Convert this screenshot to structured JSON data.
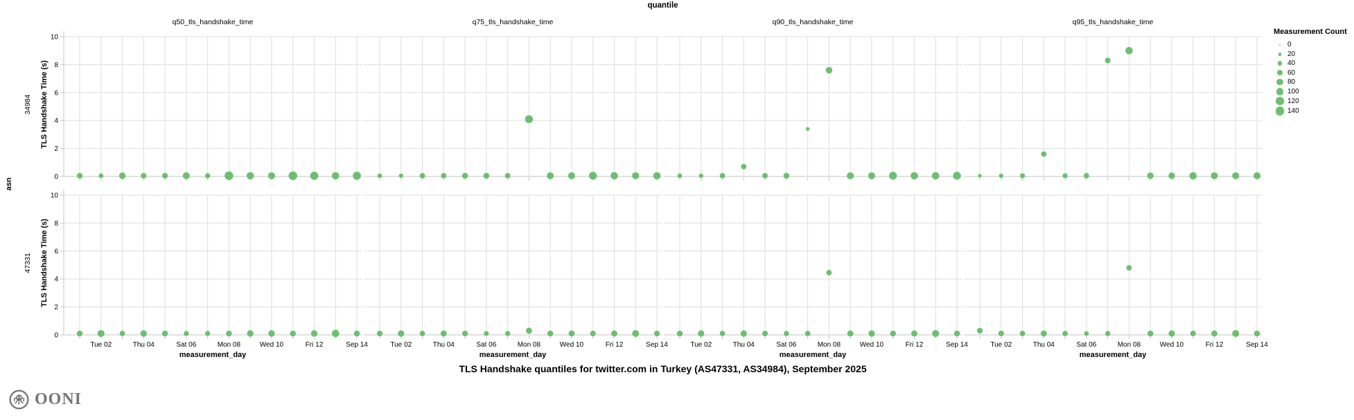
{
  "title": "TLS Handshake quantiles for twitter.com in Turkey (AS47331, AS34984), September 2025",
  "logo": {
    "text": "OONI"
  },
  "chart_data": {
    "type": "scatter",
    "facet": {
      "column_field": "quantile",
      "row_field": "asn"
    },
    "columns": [
      "q50_tls_handshake_time",
      "q75_tls_handshake_time",
      "q90_tls_handshake_time",
      "q95_tls_handshake_time"
    ],
    "rows": [
      "34984",
      "47331"
    ],
    "x": {
      "label": "measurement_day",
      "days": 14,
      "tick_labels": [
        {
          "day": 2,
          "label": "Tue 02"
        },
        {
          "day": 4,
          "label": "Thu 04"
        },
        {
          "day": 6,
          "label": "Sat 06"
        },
        {
          "day": 8,
          "label": "Mon 08"
        },
        {
          "day": 10,
          "label": "Wed 10"
        },
        {
          "day": 12,
          "label": "Fri 12"
        },
        {
          "day": 14,
          "label": "Sep 14"
        }
      ]
    },
    "y": {
      "label": "TLS Handshake Time (s)",
      "lim": [
        0,
        10
      ],
      "ticks": [
        0,
        2,
        4,
        6,
        8,
        10
      ]
    },
    "size_legend": {
      "title": "Measurement Count",
      "values": [
        0,
        20,
        40,
        60,
        80,
        100,
        120,
        140
      ]
    },
    "point_color": "#6CBF70",
    "grid_color": "#dddddd",
    "axis_color": "#c4c4c4",
    "series": [
      {
        "row": "34984",
        "column": "q50_tls_handshake_time",
        "points": [
          [
            1,
            0.05,
            60
          ],
          [
            2,
            0.05,
            40
          ],
          [
            3,
            0.05,
            80
          ],
          [
            4,
            0.05,
            60
          ],
          [
            5,
            0.05,
            60
          ],
          [
            6,
            0.05,
            90
          ],
          [
            7,
            0.05,
            50
          ],
          [
            8,
            0.05,
            140
          ],
          [
            9,
            0.05,
            100
          ],
          [
            10,
            0.05,
            90
          ],
          [
            11,
            0.05,
            140
          ],
          [
            12,
            0.05,
            120
          ],
          [
            13,
            0.05,
            100
          ],
          [
            14,
            0.05,
            120
          ]
        ]
      },
      {
        "row": "34984",
        "column": "q75_tls_handshake_time",
        "points": [
          [
            1,
            0.05,
            40
          ],
          [
            2,
            0.05,
            35
          ],
          [
            3,
            0.05,
            55
          ],
          [
            4,
            0.05,
            55
          ],
          [
            5,
            0.05,
            65
          ],
          [
            6,
            0.05,
            65
          ],
          [
            7,
            0.05,
            55
          ],
          [
            8,
            4.1,
            115
          ],
          [
            9,
            0.05,
            90
          ],
          [
            10,
            0.05,
            90
          ],
          [
            11,
            0.05,
            115
          ],
          [
            12,
            0.05,
            100
          ],
          [
            13,
            0.05,
            90
          ],
          [
            14,
            0.05,
            100
          ]
        ]
      },
      {
        "row": "34984",
        "column": "q90_tls_handshake_time",
        "points": [
          [
            1,
            0.05,
            40
          ],
          [
            2,
            0.05,
            35
          ],
          [
            3,
            0.05,
            55
          ],
          [
            4,
            0.7,
            55
          ],
          [
            5,
            0.05,
            55
          ],
          [
            6,
            0.05,
            65
          ],
          [
            7,
            3.4,
            25
          ],
          [
            8,
            7.6,
            80
          ],
          [
            9,
            0.05,
            90
          ],
          [
            10,
            0.05,
            90
          ],
          [
            11,
            0.05,
            115
          ],
          [
            12,
            0.05,
            100
          ],
          [
            13,
            0.05,
            100
          ],
          [
            14,
            0.05,
            115
          ]
        ]
      },
      {
        "row": "34984",
        "column": "q95_tls_handshake_time",
        "points": [
          [
            1,
            0.05,
            25
          ],
          [
            2,
            0.05,
            35
          ],
          [
            3,
            0.05,
            48
          ],
          [
            4,
            1.6,
            55
          ],
          [
            5,
            0.05,
            48
          ],
          [
            6,
            0.05,
            55
          ],
          [
            7,
            8.3,
            60
          ],
          [
            8,
            9.0,
            100
          ],
          [
            9,
            0.05,
            78
          ],
          [
            10,
            0.05,
            78
          ],
          [
            11,
            0.05,
            100
          ],
          [
            12,
            0.05,
            90
          ],
          [
            13,
            0.05,
            90
          ],
          [
            14,
            0.05,
            90
          ]
        ]
      },
      {
        "row": "47331",
        "column": "q50_tls_handshake_time",
        "points": [
          [
            1,
            0.1,
            65
          ],
          [
            2,
            0.1,
            90
          ],
          [
            3,
            0.1,
            55
          ],
          [
            4,
            0.1,
            78
          ],
          [
            5,
            0.1,
            65
          ],
          [
            6,
            0.1,
            48
          ],
          [
            7,
            0.1,
            48
          ],
          [
            8,
            0.1,
            65
          ],
          [
            9,
            0.1,
            78
          ],
          [
            10,
            0.1,
            78
          ],
          [
            11,
            0.1,
            65
          ],
          [
            12,
            0.1,
            78
          ],
          [
            13,
            0.1,
            100
          ],
          [
            14,
            0.1,
            65
          ]
        ]
      },
      {
        "row": "47331",
        "column": "q75_tls_handshake_time",
        "points": [
          [
            1,
            0.1,
            60
          ],
          [
            2,
            0.1,
            75
          ],
          [
            3,
            0.1,
            55
          ],
          [
            4,
            0.1,
            70
          ],
          [
            5,
            0.1,
            60
          ],
          [
            6,
            0.1,
            45
          ],
          [
            7,
            0.1,
            50
          ],
          [
            8,
            0.3,
            70
          ],
          [
            9,
            0.1,
            65
          ],
          [
            10,
            0.1,
            70
          ],
          [
            11,
            0.1,
            60
          ],
          [
            12,
            0.1,
            70
          ],
          [
            13,
            0.1,
            85
          ],
          [
            14,
            0.1,
            60
          ]
        ]
      },
      {
        "row": "47331",
        "column": "q90_tls_handshake_time",
        "points": [
          [
            1,
            0.1,
            65
          ],
          [
            2,
            0.1,
            75
          ],
          [
            3,
            0.1,
            55
          ],
          [
            4,
            0.1,
            75
          ],
          [
            5,
            0.1,
            60
          ],
          [
            6,
            0.1,
            50
          ],
          [
            7,
            0.1,
            55
          ],
          [
            8,
            4.45,
            55
          ],
          [
            9,
            0.1,
            70
          ],
          [
            10,
            0.1,
            75
          ],
          [
            11,
            0.1,
            65
          ],
          [
            12,
            0.1,
            70
          ],
          [
            13,
            0.1,
            90
          ],
          [
            14,
            0.1,
            65
          ]
        ]
      },
      {
        "row": "47331",
        "column": "q95_tls_handshake_time",
        "points": [
          [
            1,
            0.3,
            60
          ],
          [
            2,
            0.1,
            60
          ],
          [
            3,
            0.1,
            55
          ],
          [
            4,
            0.1,
            70
          ],
          [
            5,
            0.1,
            55
          ],
          [
            6,
            0.1,
            40
          ],
          [
            7,
            0.1,
            50
          ],
          [
            8,
            4.8,
            55
          ],
          [
            9,
            0.1,
            65
          ],
          [
            10,
            0.1,
            75
          ],
          [
            11,
            0.1,
            60
          ],
          [
            12,
            0.1,
            70
          ],
          [
            13,
            0.1,
            90
          ],
          [
            14,
            0.1,
            65
          ]
        ]
      }
    ]
  }
}
